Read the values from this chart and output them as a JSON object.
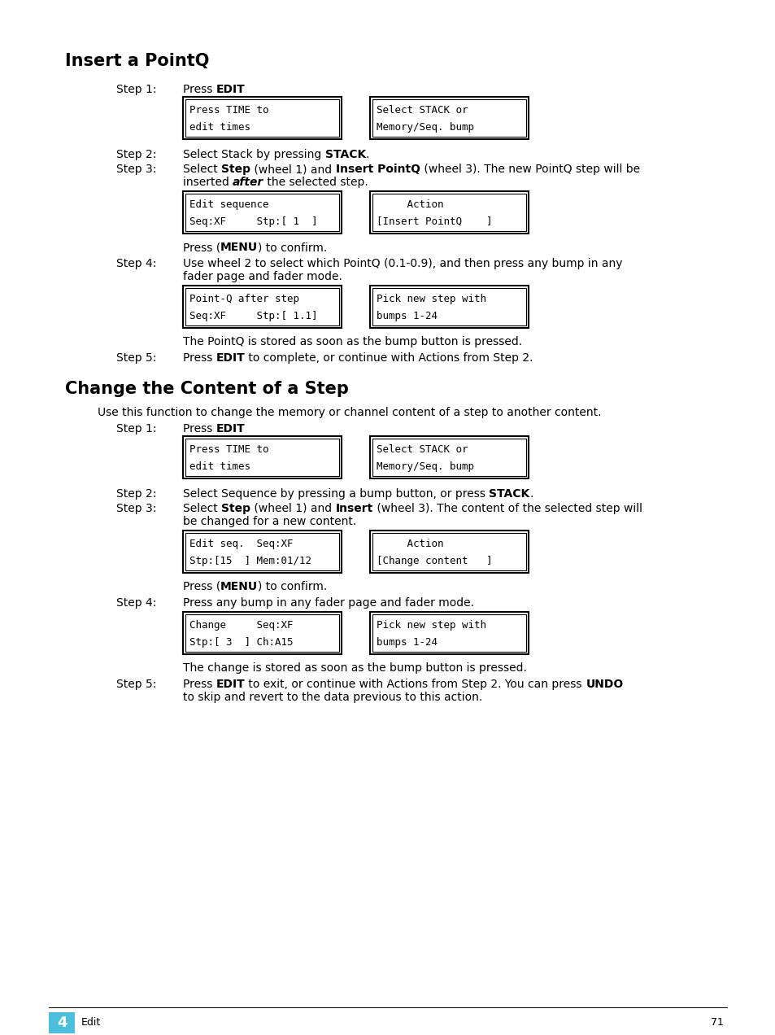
{
  "bg_color": "#ffffff",
  "footer_box_color": "#4bbfdc",
  "section1_title": "Insert a PointQ",
  "section2_title": "Change the Content of a Step",
  "footer_chapter_num": "4",
  "footer_chapter_label": "Edit",
  "footer_page_num": "71"
}
